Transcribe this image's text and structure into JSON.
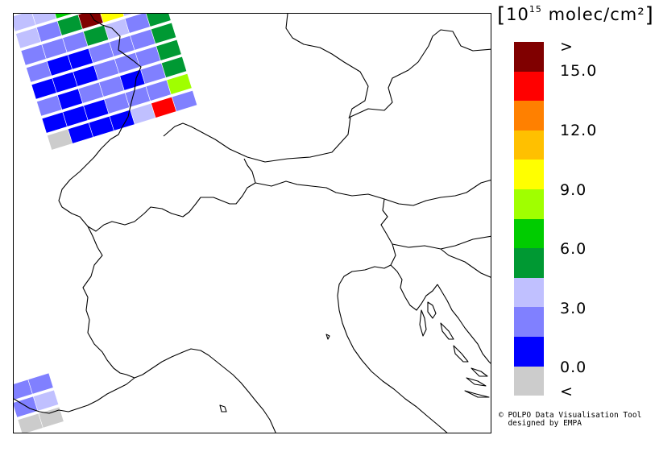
{
  "legend": {
    "title_open": "[",
    "title_base": "10",
    "title_exponent": "15",
    "title_unit": " molec/cm²",
    "title_close": "]",
    "colors": [
      "#800000",
      "#ff0000",
      "#ff8000",
      "#ffc000",
      "#ffff00",
      "#a0ff00",
      "#00cc00",
      "#009933",
      "#c0c0ff",
      "#8080ff",
      "#0000ff",
      "#cccccc"
    ],
    "labels": [
      ">",
      "15.0",
      "12.0",
      "9.0",
      "6.0",
      "3.0",
      "0.0",
      "<"
    ]
  },
  "credits": {
    "line1": "© POLPO Data Visualisation Tool",
    "line2": "  designed by EMPA"
  },
  "map": {
    "swath_cell_colors_top": [
      [
        "#c0c0ff",
        "#c0c0ff",
        "#00cc00",
        "#ffff00",
        "#ffc000",
        "#ffff00",
        "#a0ff00"
      ],
      [
        "#c0c0ff",
        "#8080ff",
        "#009933",
        "#800000",
        "#ffff00",
        "#c0c0ff",
        "#00cc00"
      ],
      [
        "#8080ff",
        "#8080ff",
        "#8080ff",
        "#009933",
        "#c0c0ff",
        "#8080ff",
        "#009933"
      ],
      [
        "#8080ff",
        "#0000ff",
        "#0000ff",
        "#8080ff",
        "#8080ff",
        "#8080ff",
        "#009933"
      ],
      [
        "#0000ff",
        "#0000ff",
        "#0000ff",
        "#8080ff",
        "#8080ff",
        "#8080ff",
        "#009933"
      ],
      [
        "#8080ff",
        "#0000ff",
        "#8080ff",
        "#8080ff",
        "#0000ff",
        "#8080ff",
        "#009933"
      ],
      [
        "#0000ff",
        "#0000ff",
        "#0000ff",
        "#8080ff",
        "#8080ff",
        "#8080ff",
        "#a0ff00"
      ],
      [
        "#cccccc",
        "#0000ff",
        "#0000ff",
        "#0000ff",
        "#c0c0ff",
        "#ff0000",
        "#8080ff"
      ]
    ],
    "swath_cell_colors_bottom": [
      [
        "#8080ff",
        "#8080ff"
      ],
      [
        "#8080ff",
        "#c0c0ff"
      ],
      [
        "#cccccc",
        "#cccccc"
      ]
    ]
  }
}
